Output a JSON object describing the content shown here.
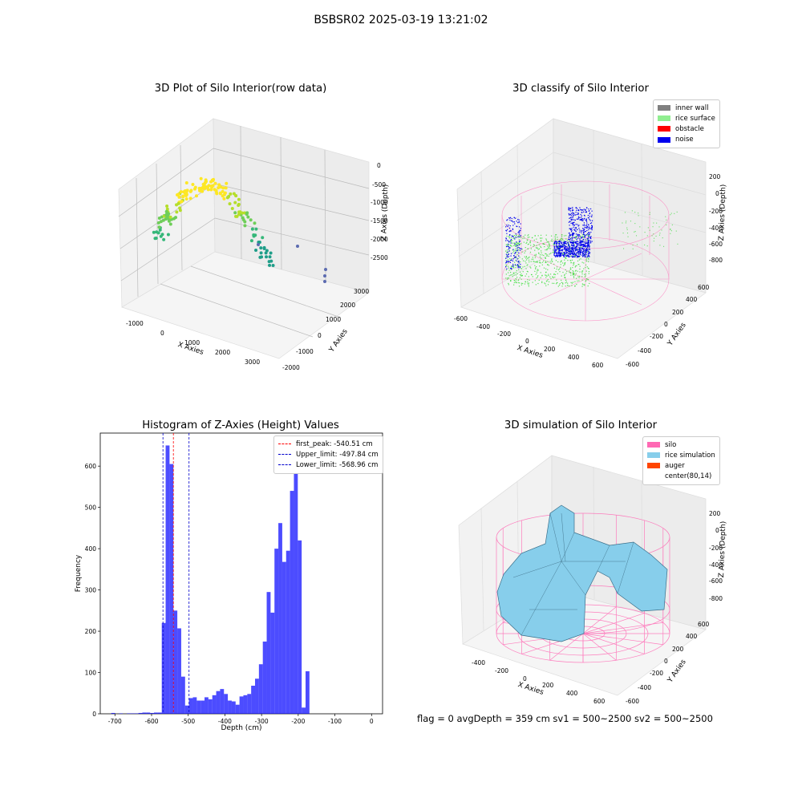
{
  "suptitle": "BSBSR02 2025-03-19 13:21:02",
  "footer": "flag = 0     avgDepth = 359 cm  sv1 = 500~2500  sv2 = 500~2500",
  "panels": {
    "raw": {
      "title": "3D Plot of Silo Interior(row data)",
      "xlabel": "X Axies",
      "ylabel": "Y Axies",
      "zlabel": "Z Axies (Depth)",
      "xticks": [
        "-1000",
        "0",
        "1000",
        "2000",
        "3000"
      ],
      "yticks": [
        "-2000",
        "-1000",
        "0",
        "1000",
        "2000",
        "3000"
      ],
      "zticks": [
        "0",
        "-500",
        "-1000",
        "-1500",
        "-2000",
        "-2500"
      ]
    },
    "classify": {
      "title": "3D classify of Silo Interior",
      "xlabel": "X Axies",
      "ylabel": "Y Axies",
      "zlabel": "Z Axies (Depth)",
      "xticks": [
        "-600",
        "-400",
        "-200",
        "0",
        "200",
        "400",
        "600"
      ],
      "yticks": [
        "-600",
        "-400",
        "-200",
        "0",
        "200",
        "400",
        "600"
      ],
      "zticks": [
        "200",
        "0",
        "-200",
        "-400",
        "-600",
        "-800"
      ],
      "legend": [
        {
          "label": "inner wall",
          "color": "#808080"
        },
        {
          "label": "rice surface",
          "color": "#90ee90"
        },
        {
          "label": "obstacle",
          "color": "#ff0000"
        },
        {
          "label": "noise",
          "color": "#0000ee"
        }
      ]
    },
    "simulation": {
      "title": "3D simulation of Silo Interior",
      "xlabel": "X Axies",
      "ylabel": "Y Axies",
      "zlabel": "Z Axies (Depth)",
      "xticks": [
        "-400",
        "-200",
        "0",
        "200",
        "400",
        "600"
      ],
      "yticks": [
        "-600",
        "-400",
        "-200",
        "0",
        "200",
        "400",
        "600"
      ],
      "zticks": [
        "200",
        "0",
        "-200",
        "-400",
        "-600",
        "-800"
      ],
      "legend": [
        {
          "label": "silo",
          "color": "#ff69b4"
        },
        {
          "label": "rice simulation",
          "color": "#87ceeb"
        },
        {
          "label": "auger",
          "color": "#ff4500"
        },
        {
          "label": "center(80,14)",
          "color": "#ffffff"
        }
      ]
    }
  },
  "chart_data": {
    "type": "bar",
    "title": "Histogram of Z-Axies (Height) Values",
    "xlabel": "Depth (cm)",
    "ylabel": "Frequency",
    "xlim": [
      -740,
      30
    ],
    "ylim": [
      0,
      680
    ],
    "xticks": [
      -700,
      -600,
      -500,
      -400,
      -300,
      -200,
      -100,
      0
    ],
    "yticks": [
      0,
      100,
      200,
      300,
      400,
      500,
      600
    ],
    "bar_color": "#0000ff",
    "bin_width": 10.6,
    "bin_start": -710,
    "values": [
      2,
      0,
      1,
      0,
      1,
      1,
      1,
      2,
      3,
      3,
      2,
      3,
      3,
      220,
      650,
      605,
      250,
      207,
      90,
      20,
      38,
      40,
      32,
      32,
      40,
      35,
      45,
      55,
      60,
      48,
      32,
      30,
      22,
      42,
      45,
      48,
      68,
      85,
      120,
      175,
      295,
      245,
      400,
      462,
      368,
      395,
      540,
      598,
      420,
      15,
      103
    ],
    "lines": [
      {
        "label": "first_peak: -540.51 cm",
        "x": -540.51,
        "color": "#ff0000"
      },
      {
        "label": "Upper_limit: -497.84 cm",
        "x": -497.84,
        "color": "#0000cc"
      },
      {
        "label": "Lower_limit: -568.96 cm",
        "x": -568.96,
        "color": "#0000cc"
      }
    ],
    "legend_position": "top-right"
  }
}
